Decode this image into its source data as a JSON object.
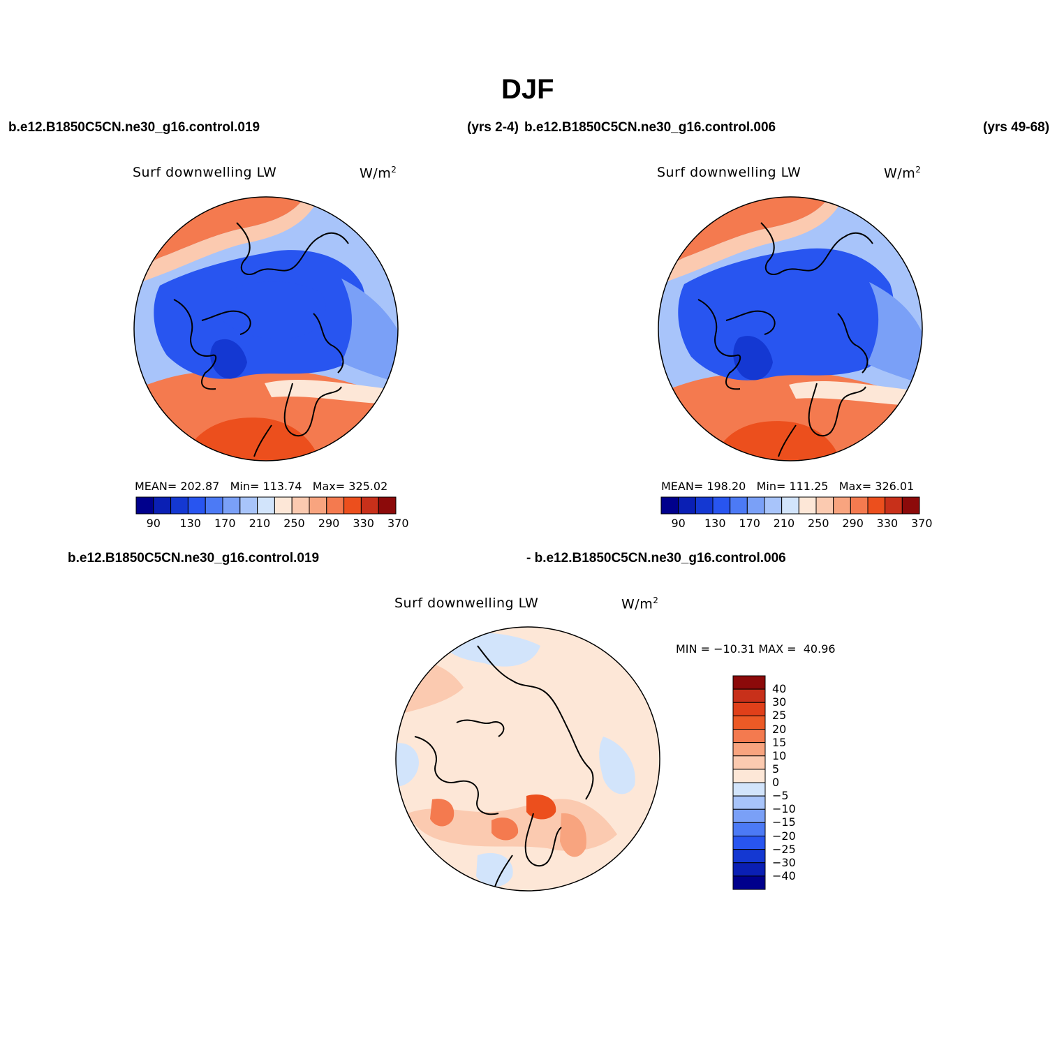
{
  "main_title": "DJF",
  "top_headers": {
    "case1": "b.e12.B1850C5CN.ne30_g16.control.019",
    "years1": "(yrs 2-4)",
    "case2": "b.e12.B1850C5CN.ne30_g16.control.006",
    "years2": "(yrs 49-68)"
  },
  "diff_headers": {
    "left": "b.e12.B1850C5CN.ne30_g16.control.019",
    "right": "- b.e12.B1850C5CN.ne30_g16.control.006"
  },
  "panels": [
    {
      "variable": "Surf downwelling LW",
      "units": "W/m",
      "units_sup": "2",
      "stats": "MEAN= 202.87   Min= 113.74   Max= 325.02",
      "colorbar_colors": [
        "#00008c",
        "#0a1fb4",
        "#1438d2",
        "#2855f0",
        "#4c7af5",
        "#7aa0f7",
        "#a8c4fa",
        "#d2e4fb",
        "#fde7d7",
        "#fbcab0",
        "#f8a47f",
        "#f47a4f",
        "#ec4f1d",
        "#c8301a",
        "#8c0a0a"
      ],
      "colorbar_ticks": [
        "90",
        "130",
        "170",
        "210",
        "250",
        "290",
        "330",
        "370"
      ]
    },
    {
      "variable": "Surf downwelling LW",
      "units": "W/m",
      "units_sup": "2",
      "stats": "MEAN= 198.20   Min= 111.25   Max= 326.01",
      "colorbar_colors": [
        "#00008c",
        "#0a1fb4",
        "#1438d2",
        "#2855f0",
        "#4c7af5",
        "#7aa0f7",
        "#a8c4fa",
        "#d2e4fb",
        "#fde7d7",
        "#fbcab0",
        "#f8a47f",
        "#f47a4f",
        "#ec4f1d",
        "#c8301a",
        "#8c0a0a"
      ],
      "colorbar_ticks": [
        "90",
        "130",
        "170",
        "210",
        "250",
        "290",
        "330",
        "370"
      ]
    },
    {
      "variable": "Surf downwelling LW",
      "units": "W/m",
      "units_sup": "2",
      "stats": "MIN = −10.31 MAX =  40.96",
      "colorbar_colors": [
        "#8c0a0a",
        "#c8301a",
        "#e0401a",
        "#ec5a26",
        "#f47a4f",
        "#f8a47f",
        "#fbcab0",
        "#fde7d7",
        "#d2e4fb",
        "#a8c4fa",
        "#7aa0f7",
        "#4c7af5",
        "#2855f0",
        "#1438d2",
        "#0a1fb4",
        "#00008c"
      ],
      "colorbar_ticks": [
        "40",
        "30",
        "25",
        "20",
        "15",
        "10",
        "5",
        "0",
        "−5",
        "−10",
        "−15",
        "−20",
        "−25",
        "−30",
        "−40"
      ]
    }
  ]
}
